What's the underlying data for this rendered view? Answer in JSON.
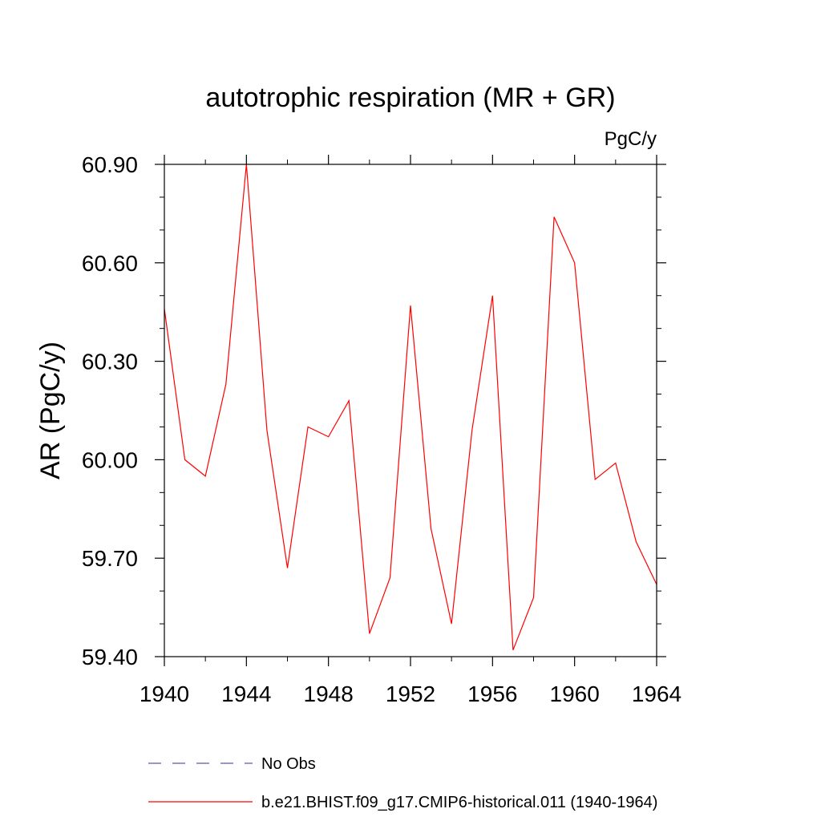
{
  "chart_data": {
    "type": "line",
    "title": "autotrophic respiration (MR + GR)",
    "units_label": "PgC/y",
    "ylabel": "AR  (PgC/y)",
    "xlabel": "",
    "xlim": [
      1940,
      1964
    ],
    "ylim": [
      59.4,
      60.9
    ],
    "x_ticks": [
      1940,
      1944,
      1948,
      1952,
      1956,
      1960,
      1964
    ],
    "x_tick_labels": [
      "1940",
      "1944",
      "1948",
      "1952",
      "1956",
      "1960",
      "1964"
    ],
    "y_ticks": [
      59.4,
      59.7,
      60.0,
      60.3,
      60.6,
      60.9
    ],
    "y_tick_labels": [
      "59.40",
      "59.70",
      "60.00",
      "60.30",
      "60.60",
      "60.90"
    ],
    "grid": false,
    "legend_position": "bottom",
    "series": [
      {
        "name": "b.e21.BHIST.f09_g17.CMIP6-historical.011 (1940-1964)",
        "color": "#ff0000",
        "style": "solid",
        "x": [
          1940,
          1941,
          1942,
          1943,
          1944,
          1945,
          1946,
          1947,
          1948,
          1949,
          1950,
          1951,
          1952,
          1953,
          1954,
          1955,
          1956,
          1957,
          1958,
          1959,
          1960,
          1961,
          1962,
          1963,
          1964
        ],
        "y": [
          60.46,
          60.0,
          59.95,
          60.23,
          60.9,
          60.09,
          59.67,
          60.1,
          60.07,
          60.18,
          59.47,
          59.64,
          60.47,
          59.79,
          59.5,
          60.09,
          60.5,
          59.42,
          59.58,
          60.74,
          60.6,
          59.94,
          59.99,
          59.75,
          59.62
        ]
      }
    ],
    "legend": [
      {
        "label": "No Obs",
        "color": "#5a5aa8",
        "style": "dashed"
      },
      {
        "label": "b.e21.BHIST.f09_g17.CMIP6-historical.011 (1940-1964)",
        "color": "#ff0000",
        "style": "solid"
      }
    ]
  }
}
